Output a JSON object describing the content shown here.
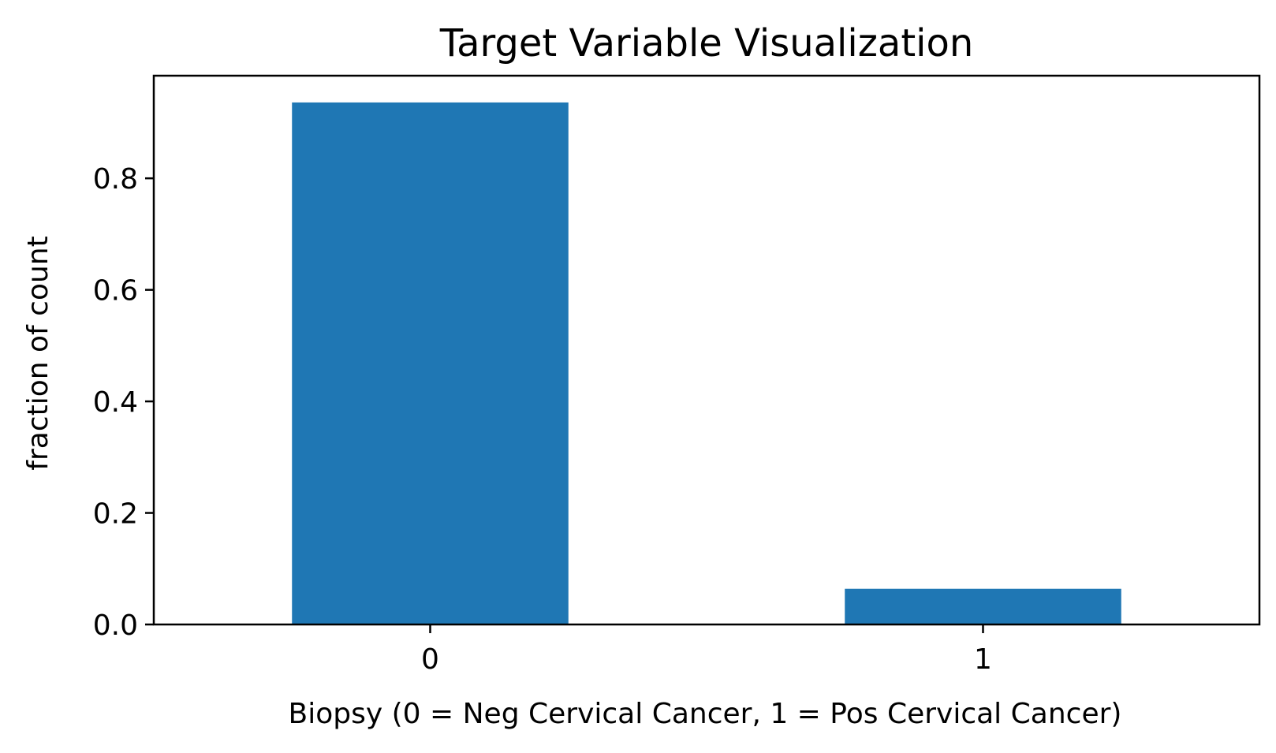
{
  "chart_data": {
    "type": "bar",
    "title": "Target Variable Visualization",
    "xlabel": "Biopsy (0 = Neg Cervical Cancer, 1 = Pos Cervical Cancer)",
    "ylabel": "fraction of count",
    "categories": [
      "0",
      "1"
    ],
    "values": [
      0.936,
      0.064
    ],
    "ylim": [
      0,
      0.984
    ],
    "yticks": [
      0.0,
      0.2,
      0.4,
      0.6,
      0.8
    ],
    "ytick_labels": [
      "0.0",
      "0.2",
      "0.4",
      "0.6",
      "0.8"
    ],
    "grid": false,
    "bar_color": "#1f77b4"
  }
}
